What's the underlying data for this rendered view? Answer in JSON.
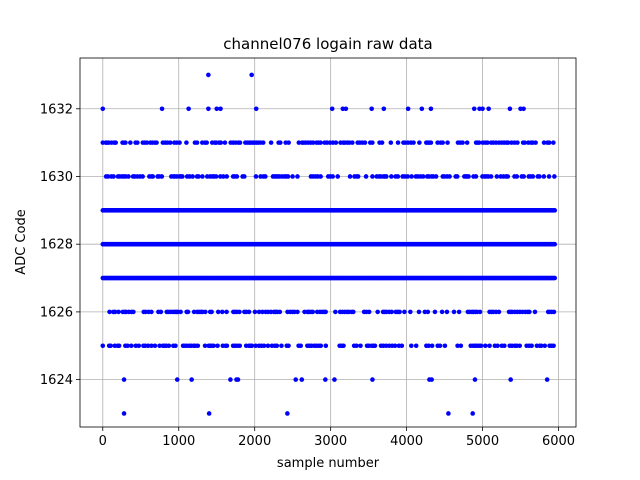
{
  "chart_data": {
    "type": "scatter",
    "title": "channel076 logain raw data",
    "xlabel": "sample number",
    "ylabel": "ADC Code",
    "xlim": [
      -300,
      6230
    ],
    "ylim": [
      1622.6,
      1633.5
    ],
    "xticks": [
      0,
      1000,
      2000,
      3000,
      4000,
      5000,
      6000
    ],
    "yticks": [
      1624,
      1626,
      1628,
      1630,
      1632
    ],
    "grid": true,
    "marker_color": "#0000ff",
    "n_samples": 5950,
    "dense_levels": [
      1627,
      1628,
      1629
    ],
    "medium_levels": [
      1625,
      1626,
      1630,
      1631
    ],
    "sparse_points": {
      "1633": [
        1390,
        1960
      ],
      "1632": [
        0,
        780,
        1130,
        1390,
        1500,
        1550,
        2020,
        3020,
        3160,
        3200,
        3540,
        3700,
        4020,
        4200,
        4320,
        4890,
        4960,
        5000,
        5080,
        5360,
        5500,
        5540
      ],
      "1624": [
        280,
        980,
        1170,
        1680,
        1760,
        1780,
        2540,
        2620,
        2930,
        3050,
        3550,
        4300,
        4330,
        4900,
        5370,
        5850
      ],
      "1623": [
        280,
        1400,
        2430,
        4550,
        4870
      ]
    }
  }
}
